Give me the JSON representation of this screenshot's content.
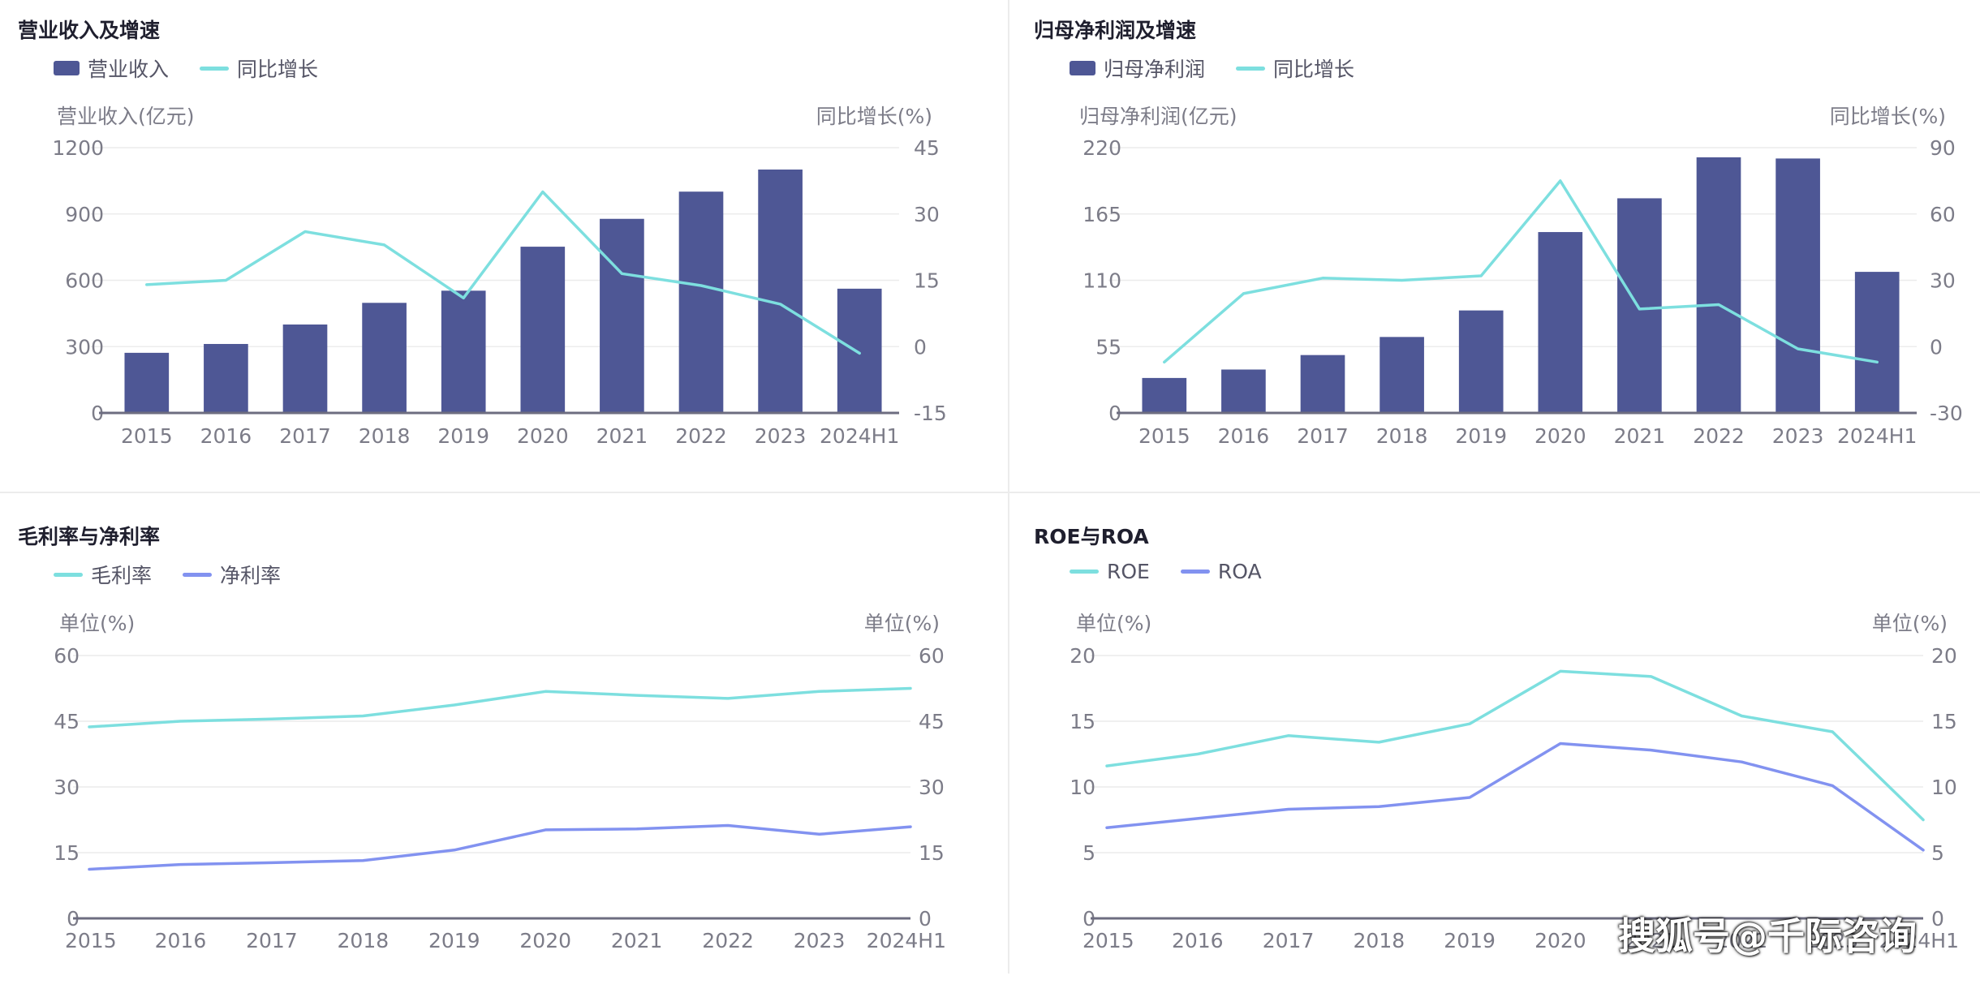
{
  "watermark": "搜狐号@千际咨询",
  "colors": {
    "bar": "#4e5795",
    "teal": "#7ddfdf",
    "blue": "#8292f0",
    "axis": "#6d6d80",
    "grid": "#ececec"
  },
  "panels": [
    {
      "title": "营业收入及增速",
      "legend": [
        {
          "label": "营业收入",
          "kind": "bar",
          "color": "#4e5795"
        },
        {
          "label": "同比增长",
          "kind": "line",
          "color": "#7ddfdf"
        }
      ],
      "left_axis_title": "营业收入(亿元)",
      "right_axis_title": "同比增长(%)"
    },
    {
      "title": "归母净利润及增速",
      "legend": [
        {
          "label": "归母净利润",
          "kind": "bar",
          "color": "#4e5795"
        },
        {
          "label": "同比增长",
          "kind": "line",
          "color": "#7ddfdf"
        }
      ],
      "left_axis_title": "归母净利润(亿元)",
      "right_axis_title": "同比增长(%)"
    },
    {
      "title": "毛利率与净利率",
      "legend": [
        {
          "label": "毛利率",
          "kind": "line",
          "color": "#7ddfdf"
        },
        {
          "label": "净利率",
          "kind": "line",
          "color": "#8292f0"
        }
      ],
      "left_axis_title": "单位(%)",
      "right_axis_title": "单位(%)"
    },
    {
      "title": "ROE与ROA",
      "legend": [
        {
          "label": "ROE",
          "kind": "line",
          "color": "#7ddfdf"
        },
        {
          "label": "ROA",
          "kind": "line",
          "color": "#8292f0"
        }
      ],
      "left_axis_title": "单位(%)",
      "right_axis_title": "单位(%)"
    }
  ],
  "chart_data": [
    {
      "type": "bar",
      "title": "营业收入及增速",
      "categories": [
        "2015",
        "2016",
        "2017",
        "2018",
        "2019",
        "2020",
        "2021",
        "2022",
        "2023",
        "2024H1"
      ],
      "series": [
        {
          "name": "营业收入",
          "type": "bar",
          "axis": "left",
          "color": "#4e5795",
          "values": [
            272,
            312,
            400,
            498,
            553,
            752,
            878,
            1001,
            1101,
            562
          ]
        },
        {
          "name": "同比增长",
          "type": "line",
          "axis": "right",
          "color": "#7ddfdf",
          "values": [
            14.0,
            15.0,
            26.0,
            23.0,
            11.0,
            35.0,
            16.5,
            13.8,
            9.6,
            -1.5
          ]
        }
      ],
      "ylabel": "营业收入(亿元)",
      "ylim": [
        0,
        1200
      ],
      "yticks": [
        0,
        300,
        600,
        900,
        1200
      ],
      "y2label": "同比增长(%)",
      "y2lim": [
        -15,
        45
      ],
      "y2ticks": [
        -15,
        0,
        15,
        30,
        45
      ],
      "legend": "top-left",
      "grid": true
    },
    {
      "type": "bar",
      "title": "归母净利润及增速",
      "categories": [
        "2015",
        "2016",
        "2017",
        "2018",
        "2019",
        "2020",
        "2021",
        "2022",
        "2023",
        "2024H1"
      ],
      "series": [
        {
          "name": "归母净利润",
          "type": "bar",
          "axis": "left",
          "color": "#4e5795",
          "values": [
            29,
            36,
            48,
            63,
            85,
            150,
            178,
            212,
            211,
            117
          ]
        },
        {
          "name": "同比增长",
          "type": "line",
          "axis": "right",
          "color": "#7ddfdf",
          "values": [
            -7,
            24,
            31,
            30,
            32,
            75,
            17,
            19,
            -1,
            -7
          ]
        }
      ],
      "ylabel": "归母净利润(亿元)",
      "ylim": [
        0,
        220
      ],
      "yticks": [
        0,
        55,
        110,
        165,
        220
      ],
      "y2label": "同比增长(%)",
      "y2lim": [
        -30,
        90
      ],
      "y2ticks": [
        -30,
        0,
        30,
        60,
        90
      ],
      "legend": "top-left",
      "grid": true
    },
    {
      "type": "line",
      "title": "毛利率与净利率",
      "categories": [
        "2015",
        "2016",
        "2017",
        "2018",
        "2019",
        "2020",
        "2021",
        "2022",
        "2023",
        "2024H1"
      ],
      "series": [
        {
          "name": "毛利率",
          "color": "#7ddfdf",
          "values": [
            43.7,
            45.0,
            45.5,
            46.2,
            48.7,
            51.8,
            50.9,
            50.2,
            51.8,
            52.5
          ]
        },
        {
          "name": "净利率",
          "color": "#8292f0",
          "values": [
            11.2,
            12.3,
            12.7,
            13.2,
            15.6,
            20.2,
            20.4,
            21.2,
            19.2,
            20.9
          ]
        }
      ],
      "ylabel": "单位(%)",
      "ylim": [
        0,
        60
      ],
      "yticks": [
        0,
        15,
        30,
        45,
        60
      ],
      "y2label": "单位(%)",
      "y2lim": [
        0,
        60
      ],
      "y2ticks": [
        0,
        15,
        30,
        45,
        60
      ],
      "legend": "top-left",
      "grid": true
    },
    {
      "type": "line",
      "title": "ROE与ROA",
      "categories": [
        "2015",
        "2016",
        "2017",
        "2018",
        "2019",
        "2020",
        "2021",
        "2022",
        "2023",
        "2024H1"
      ],
      "series": [
        {
          "name": "ROE",
          "color": "#7ddfdf",
          "values": [
            11.6,
            12.5,
            13.9,
            13.4,
            14.8,
            18.8,
            18.4,
            15.4,
            14.2,
            7.5
          ]
        },
        {
          "name": "ROA",
          "color": "#8292f0",
          "values": [
            6.9,
            7.6,
            8.3,
            8.5,
            9.2,
            13.3,
            12.8,
            11.9,
            10.1,
            5.2
          ]
        }
      ],
      "ylabel": "单位(%)",
      "ylim": [
        0,
        20
      ],
      "yticks": [
        0,
        5,
        10,
        15,
        20
      ],
      "y2label": "单位(%)",
      "y2lim": [
        0,
        20
      ],
      "y2ticks": [
        0,
        5,
        10,
        15,
        20
      ],
      "legend": "top-left",
      "grid": true
    }
  ]
}
